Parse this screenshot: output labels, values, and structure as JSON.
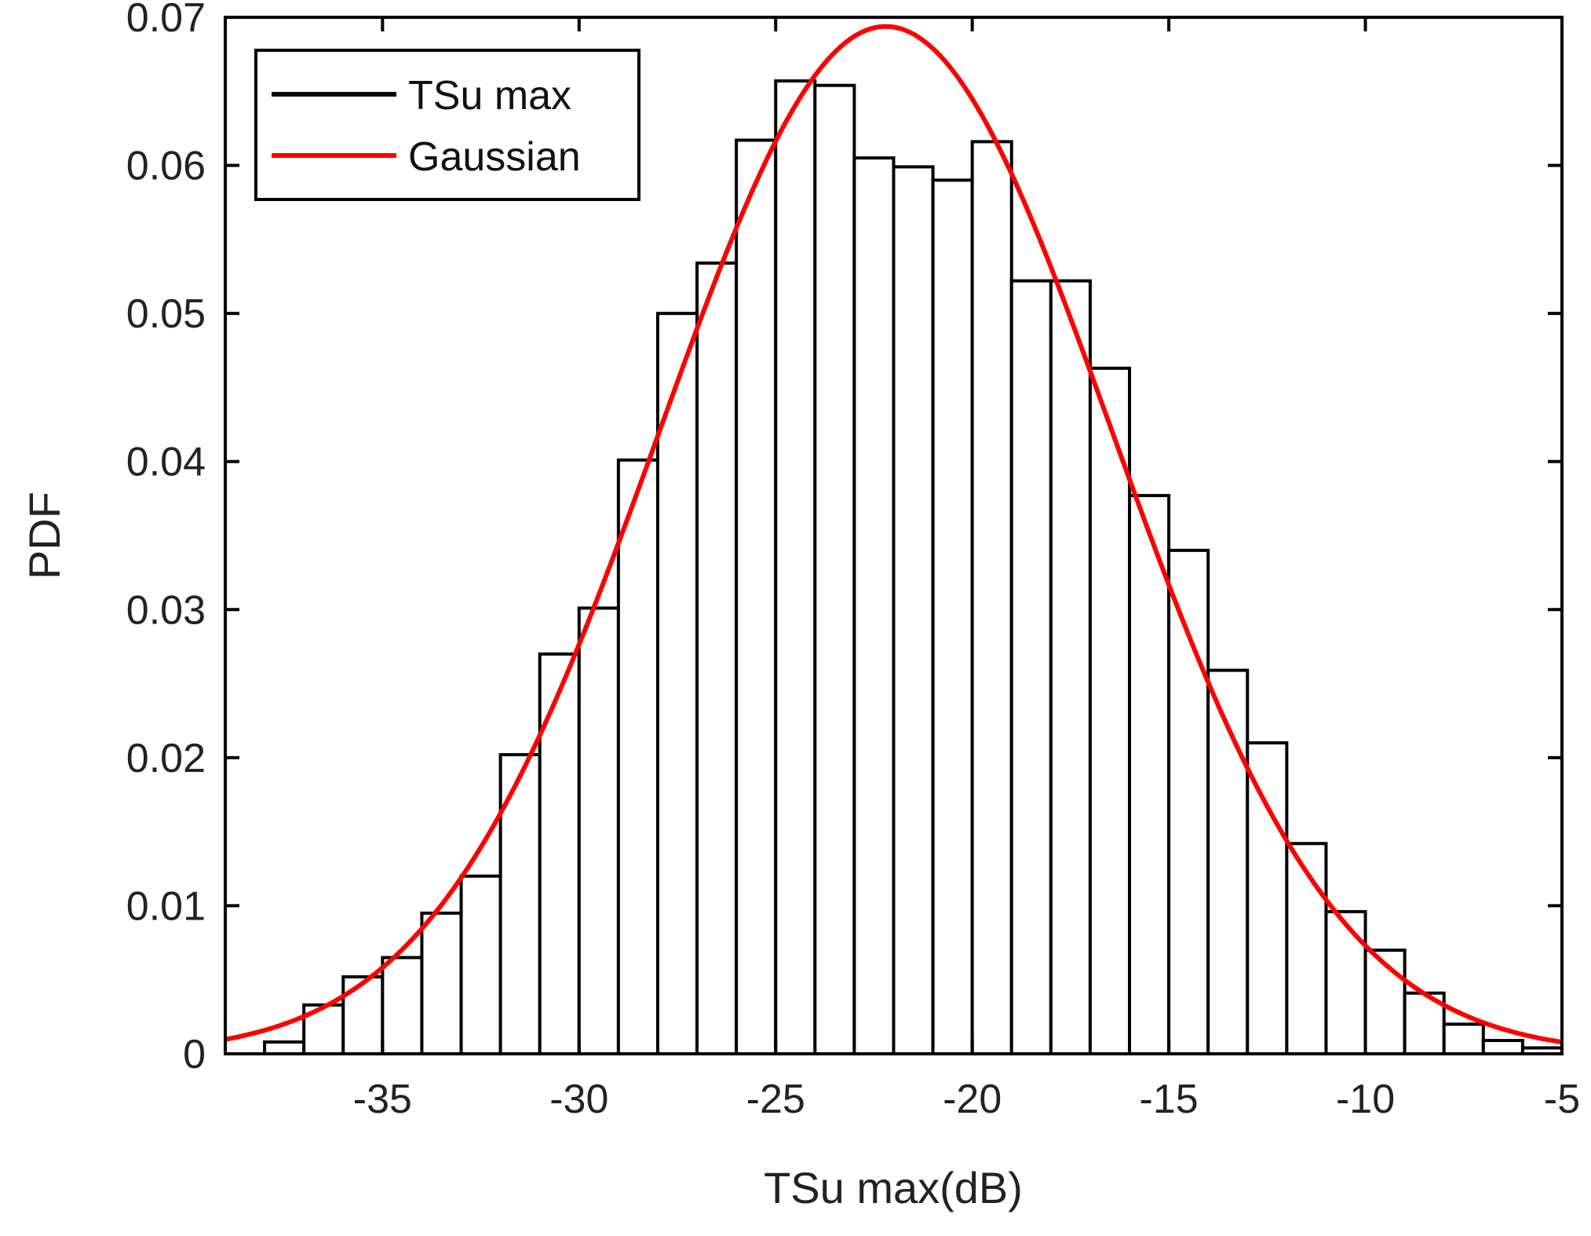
{
  "chart_data": {
    "type": "bar",
    "title": "",
    "xlabel": "TSu max(dB)",
    "ylabel": "PDF",
    "xlim": [
      -39,
      -5
    ],
    "ylim": [
      0,
      0.07
    ],
    "xticks": [
      -35,
      -30,
      -25,
      -20,
      -15,
      -10,
      -5
    ],
    "xtick_labels": [
      "-35",
      "-30",
      "-25",
      "-20",
      "-15",
      "-10",
      "-5"
    ],
    "yticks": [
      0,
      0.01,
      0.02,
      0.03,
      0.04,
      0.05,
      0.06,
      0.07
    ],
    "ytick_labels": [
      "0",
      "0.01",
      "0.02",
      "0.03",
      "0.04",
      "0.05",
      "0.06",
      "0.07"
    ],
    "grid": false,
    "legend_position": "top-left",
    "legend": [
      {
        "label": "TSu max",
        "color": "#000000"
      },
      {
        "label": "Gaussian",
        "color": "#ff0000"
      }
    ],
    "histogram": {
      "name": "TSu max",
      "bin_edges": [
        -38,
        -37,
        -36,
        -35,
        -34,
        -33,
        -32,
        -31,
        -30,
        -29,
        -28,
        -27,
        -26,
        -25,
        -24,
        -23,
        -22,
        -21,
        -20,
        -19,
        -18,
        -17,
        -16,
        -15,
        -14,
        -13,
        -12,
        -11,
        -10,
        -9,
        -8,
        -7,
        -6,
        -5
      ],
      "values": [
        0.0008,
        0.0033,
        0.0052,
        0.0065,
        0.0095,
        0.012,
        0.0202,
        0.027,
        0.0301,
        0.0401,
        0.05,
        0.0534,
        0.0617,
        0.0657,
        0.0654,
        0.0605,
        0.0599,
        0.059,
        0.0616,
        0.0522,
        0.0522,
        0.0463,
        0.0377,
        0.034,
        0.0259,
        0.021,
        0.0142,
        0.0096,
        0.007,
        0.0041,
        0.002,
        0.0009,
        0.0004
      ],
      "edge_color": "#000000",
      "fill_color": "#ffffff"
    },
    "series": [
      {
        "name": "Gaussian",
        "type": "line",
        "distribution": "normal",
        "mean": -22.2,
        "std": 5.75,
        "x_range": [
          -39,
          -5
        ],
        "color": "#ff0000"
      }
    ]
  }
}
